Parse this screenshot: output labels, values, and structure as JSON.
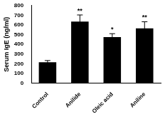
{
  "chart_data": {
    "type": "bar",
    "y_label": "Serum IgE (ng/ml)",
    "categories": [
      "Control",
      "Anilide",
      "Oleic acid",
      "Aniline"
    ],
    "values": [
      215,
      635,
      475,
      565
    ],
    "errors": [
      18,
      68,
      35,
      68
    ],
    "significance": [
      null,
      "**",
      "*",
      "**"
    ],
    "color": "#000000",
    "ylim": [
      0,
      800
    ],
    "yticks": [
      0,
      100,
      200,
      300,
      400,
      500,
      600,
      700,
      800
    ],
    "grid": false
  }
}
